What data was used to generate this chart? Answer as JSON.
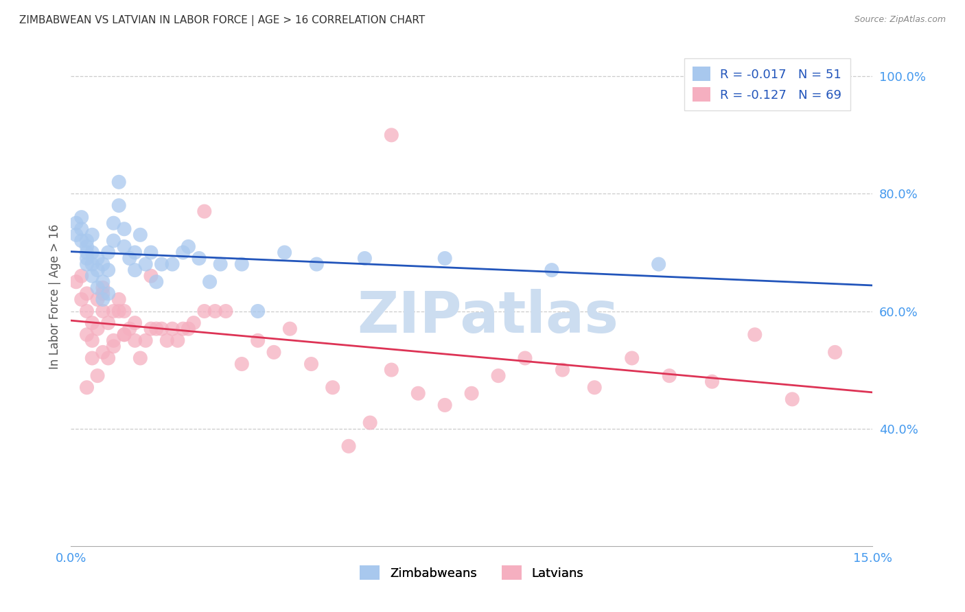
{
  "title": "ZIMBABWEAN VS LATVIAN IN LABOR FORCE | AGE > 16 CORRELATION CHART",
  "source": "Source: ZipAtlas.com",
  "ylabel": "In Labor Force | Age > 16",
  "xlim": [
    0.0,
    0.15
  ],
  "ylim": [
    0.2,
    1.05
  ],
  "yticks": [
    0.4,
    0.6,
    0.8,
    1.0
  ],
  "yticklabels": [
    "40.0%",
    "60.0%",
    "80.0%",
    "100.0%"
  ],
  "xtick_left": "0.0%",
  "xtick_right": "15.0%",
  "blue_R": "-0.017",
  "blue_N": "51",
  "pink_R": "-0.127",
  "pink_N": "69",
  "blue_color": "#a8c8ee",
  "pink_color": "#f5afc0",
  "blue_line_color": "#2255bb",
  "pink_line_color": "#dd3355",
  "legend_text_color": "#2255bb",
  "legend_label_color": "#333333",
  "blue_x": [
    0.001,
    0.001,
    0.002,
    0.002,
    0.002,
    0.003,
    0.003,
    0.003,
    0.003,
    0.003,
    0.004,
    0.004,
    0.004,
    0.004,
    0.005,
    0.005,
    0.005,
    0.006,
    0.006,
    0.006,
    0.007,
    0.007,
    0.007,
    0.008,
    0.008,
    0.009,
    0.009,
    0.01,
    0.01,
    0.011,
    0.012,
    0.012,
    0.013,
    0.014,
    0.015,
    0.016,
    0.017,
    0.019,
    0.021,
    0.022,
    0.024,
    0.026,
    0.028,
    0.032,
    0.035,
    0.04,
    0.046,
    0.055,
    0.07,
    0.09,
    0.11
  ],
  "blue_y": [
    0.75,
    0.73,
    0.76,
    0.74,
    0.72,
    0.71,
    0.69,
    0.68,
    0.7,
    0.72,
    0.66,
    0.68,
    0.7,
    0.73,
    0.64,
    0.67,
    0.69,
    0.62,
    0.65,
    0.68,
    0.63,
    0.67,
    0.7,
    0.72,
    0.75,
    0.78,
    0.82,
    0.71,
    0.74,
    0.69,
    0.67,
    0.7,
    0.73,
    0.68,
    0.7,
    0.65,
    0.68,
    0.68,
    0.7,
    0.71,
    0.69,
    0.65,
    0.68,
    0.68,
    0.6,
    0.7,
    0.68,
    0.69,
    0.69,
    0.67,
    0.68
  ],
  "pink_x": [
    0.001,
    0.002,
    0.002,
    0.003,
    0.003,
    0.003,
    0.004,
    0.004,
    0.005,
    0.005,
    0.006,
    0.006,
    0.006,
    0.007,
    0.007,
    0.008,
    0.008,
    0.009,
    0.009,
    0.01,
    0.01,
    0.011,
    0.012,
    0.012,
    0.013,
    0.014,
    0.015,
    0.016,
    0.017,
    0.018,
    0.019,
    0.02,
    0.021,
    0.022,
    0.023,
    0.025,
    0.027,
    0.029,
    0.032,
    0.035,
    0.038,
    0.041,
    0.045,
    0.049,
    0.052,
    0.056,
    0.06,
    0.065,
    0.07,
    0.075,
    0.08,
    0.085,
    0.092,
    0.098,
    0.105,
    0.112,
    0.12,
    0.128,
    0.135,
    0.143,
    0.003,
    0.004,
    0.005,
    0.006,
    0.008,
    0.01,
    0.015,
    0.025,
    0.06
  ],
  "pink_y": [
    0.65,
    0.62,
    0.66,
    0.56,
    0.6,
    0.63,
    0.55,
    0.58,
    0.57,
    0.62,
    0.53,
    0.6,
    0.64,
    0.52,
    0.58,
    0.55,
    0.6,
    0.6,
    0.62,
    0.56,
    0.6,
    0.57,
    0.55,
    0.58,
    0.52,
    0.55,
    0.57,
    0.57,
    0.57,
    0.55,
    0.57,
    0.55,
    0.57,
    0.57,
    0.58,
    0.6,
    0.6,
    0.6,
    0.51,
    0.55,
    0.53,
    0.57,
    0.51,
    0.47,
    0.37,
    0.41,
    0.5,
    0.46,
    0.44,
    0.46,
    0.49,
    0.52,
    0.5,
    0.47,
    0.52,
    0.49,
    0.48,
    0.56,
    0.45,
    0.53,
    0.47,
    0.52,
    0.49,
    0.63,
    0.54,
    0.56,
    0.66,
    0.77,
    0.9
  ],
  "watermark": "ZIPatlas",
  "watermark_color": "#ccddf0",
  "background_color": "#ffffff",
  "grid_color": "#cccccc",
  "title_color": "#333333",
  "tick_label_color": "#4499ee",
  "axis_label_color": "#555555"
}
